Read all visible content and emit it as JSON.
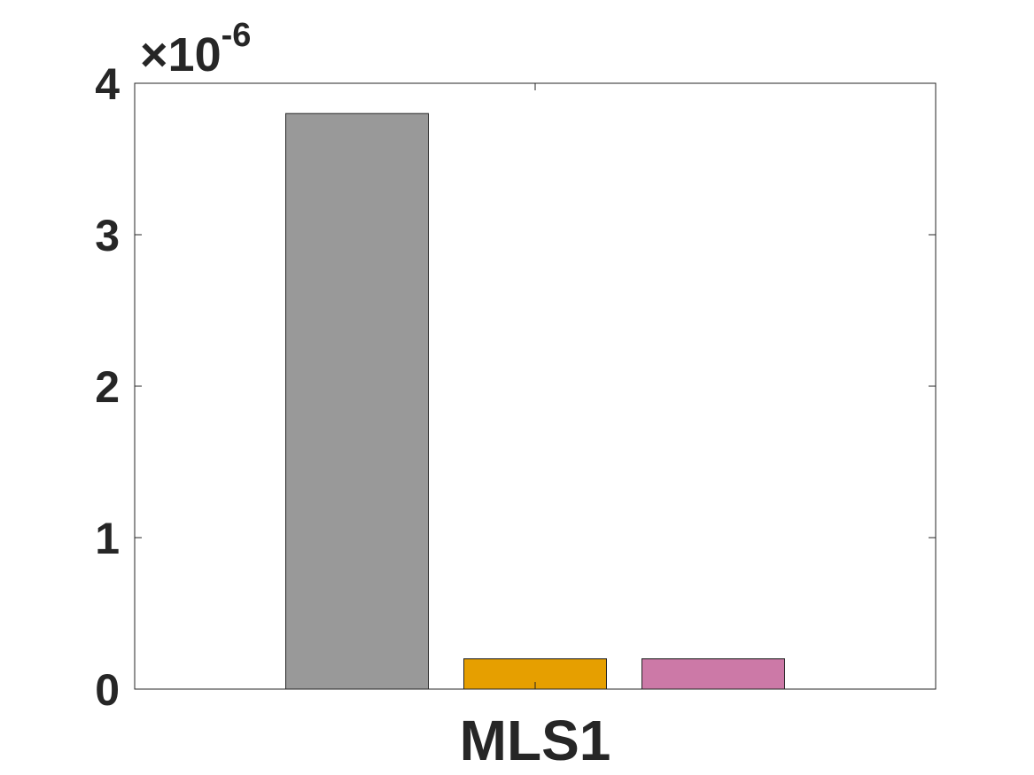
{
  "chart_data": {
    "type": "bar",
    "title": "",
    "xlabel": "",
    "ylabel": "",
    "categories": [
      "MLS1"
    ],
    "series": [
      {
        "values": [
          3.8e-06
        ],
        "color": "#999999"
      },
      {
        "values": [
          2e-07
        ],
        "color": "#E69F00"
      },
      {
        "values": [
          2e-07
        ],
        "color": "#CC79A7"
      }
    ],
    "ylim": [
      0,
      4e-06
    ],
    "yticks": [
      0,
      1,
      2,
      3,
      4
    ],
    "ytick_labels": [
      "0",
      "1",
      "2",
      "3",
      "4"
    ],
    "y_exponent_label": {
      "prefix": "×10",
      "power": "-6"
    },
    "grid": false,
    "legend": "none"
  }
}
